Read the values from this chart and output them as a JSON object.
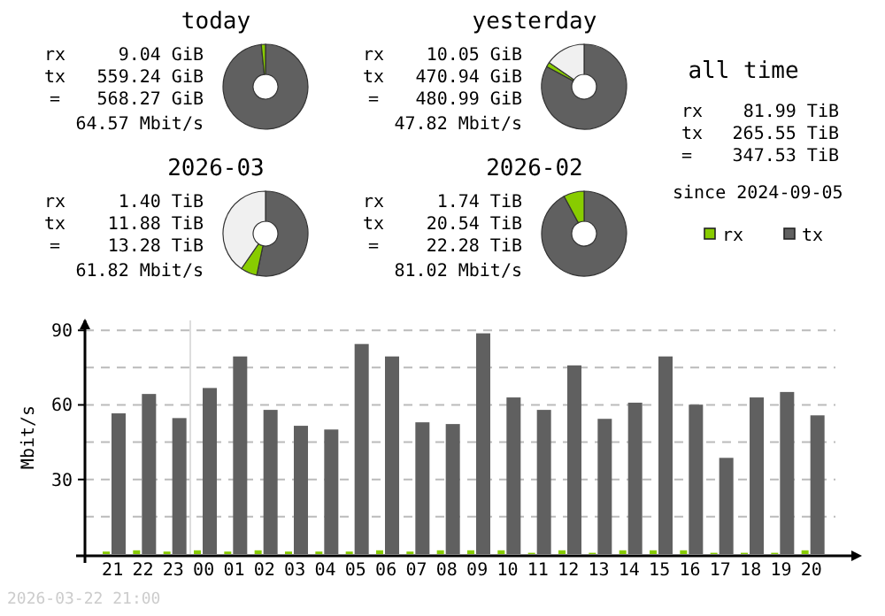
{
  "chart_data": [
    {
      "type": "donut",
      "title": "today",
      "categories": [
        null,
        null
      ],
      "values": [
        98.41,
        1.59
      ],
      "colors": [
        "#606060",
        "#88cc00"
      ],
      "annotations": [
        "rx 9.04 GiB",
        "tx 559.24 GiB",
        "= 568.27 GiB",
        "64.57 Mbit/s"
      ]
    },
    {
      "type": "donut",
      "title": "yesterday",
      "categories": [
        null,
        null,
        null
      ],
      "values": [
        82.87,
        1.77,
        15.36
      ],
      "colors": [
        "#606060",
        "#88cc00",
        "#f0f0f0"
      ],
      "annotations": [
        "rx 10.05 GiB",
        "tx 470.94 GiB",
        "= 480.99 GiB",
        "47.82 Mbit/s"
      ]
    },
    {
      "type": "other",
      "title": "all time",
      "annotations": [
        "rx 81.99 TiB",
        "tx 265.55 TiB",
        "= 347.53 TiB",
        "since 2024-09-05"
      ]
    },
    {
      "type": "donut",
      "title": "2026-03",
      "categories": [
        null,
        null,
        null
      ],
      "values": [
        53.32,
        6.28,
        40.4
      ],
      "colors": [
        "#606060",
        "#88cc00",
        "#f0f0f0"
      ],
      "annotations": [
        "rx 1.40 TiB",
        "tx 11.88 TiB",
        "= 13.28 TiB",
        "61.82 Mbit/s"
      ]
    },
    {
      "type": "donut",
      "title": "2026-02",
      "categories": [
        null,
        null
      ],
      "values": [
        92.19,
        7.81
      ],
      "colors": [
        "#606060",
        "#88cc00"
      ],
      "annotations": [
        "rx 1.74 TiB",
        "tx 20.54 TiB",
        "= 22.28 TiB",
        "81.02 Mbit/s"
      ]
    },
    {
      "type": "bar",
      "ylabel": "Mbit/s",
      "categories": [
        "21",
        "22",
        "23",
        "00",
        "01",
        "02",
        "03",
        "04",
        "05",
        "06",
        "07",
        "08",
        "09",
        "10",
        "11",
        "12",
        "13",
        "14",
        "15",
        "16",
        "17",
        "18",
        "19",
        "20"
      ],
      "series": [
        {
          "name": "rx",
          "color": "#88cc00",
          "values": [
            1,
            1.5,
            1,
            1.5,
            1,
            1.5,
            1,
            1,
            1,
            1.5,
            1,
            1.5,
            1.5,
            1.5,
            0.5,
            1.5,
            0.5,
            1.5,
            1.5,
            1.5,
            0.5,
            0.5,
            0.5,
            1.5
          ]
        },
        {
          "name": "tx",
          "color": "#606060",
          "values": [
            56.6,
            64.4,
            54.7,
            66.8,
            79.5,
            58,
            51.6,
            50.1,
            84.5,
            79.5,
            53,
            52.3,
            88.8,
            63,
            58,
            75.9,
            54.4,
            60.9,
            79.5,
            60.1,
            38.7,
            63,
            65.2,
            55.8
          ]
        }
      ],
      "ylim": [
        0,
        94
      ],
      "yticks": [
        {
          "value": 0,
          "label": null
        },
        {
          "value": 15,
          "label": null
        },
        30,
        {
          "value": 45,
          "label": null
        },
        60,
        {
          "value": 75,
          "label": null
        },
        90
      ],
      "grid": "y",
      "legend": "top right",
      "ref_lines": [
        {
          "axis": "x",
          "value": "00",
          "color": "#dddddd"
        }
      ],
      "annotations": [
        "2026-03-22 21:00"
      ]
    }
  ]
}
